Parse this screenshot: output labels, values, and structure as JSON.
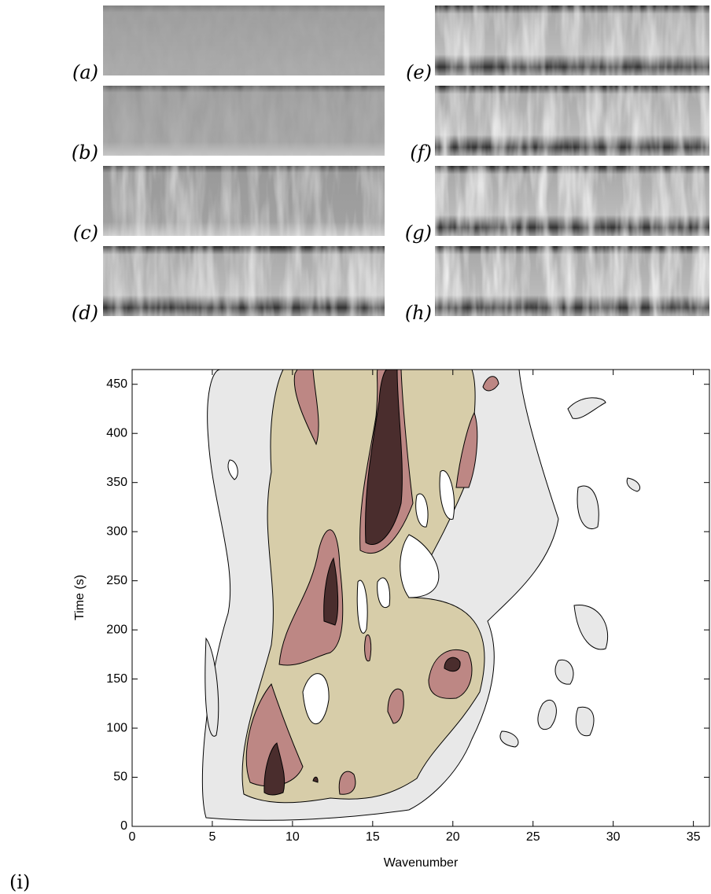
{
  "panels": {
    "labels": [
      "(a)",
      "(b)",
      "(c)",
      "(d)",
      "(e)",
      "(f)",
      "(g)",
      "(h)"
    ]
  },
  "chart_data": {
    "type": "contour",
    "label": "(i)",
    "xlabel": "Wavenumber",
    "ylabel": "Time (s)",
    "xlim": [
      0,
      36
    ],
    "xticks": [
      0,
      5,
      10,
      15,
      20,
      25,
      30,
      35
    ],
    "ylim": [
      0,
      465
    ],
    "yticks": [
      0,
      50,
      100,
      150,
      200,
      250,
      300,
      350,
      400,
      450
    ]
  }
}
